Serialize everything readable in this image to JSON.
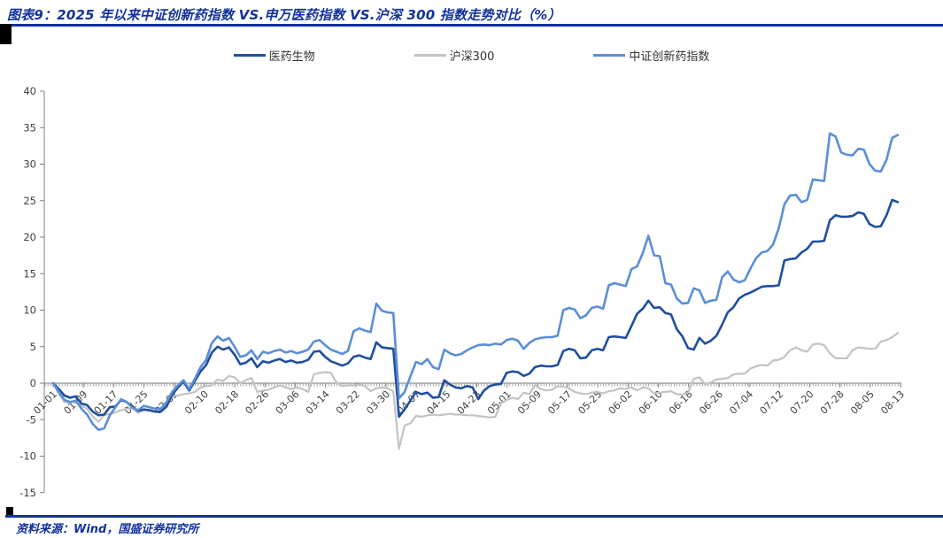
{
  "header": {
    "title": "图表9：2025 年以来中证创新药指数 VS.申万医药指数 VS.沪深 300 指数走势对比（%）"
  },
  "footer": {
    "source": "资料来源：Wind，国盛证券研究所"
  },
  "accent": {
    "rule_blue": "#12319e",
    "tab_black": "#000000",
    "axis_line": "#808080",
    "tick_text": "#404040"
  },
  "chart_data": {
    "type": "line",
    "title": "",
    "xlabel": "",
    "ylabel": "",
    "ylim": [
      -15,
      40
    ],
    "y_ticks": [
      -15,
      -10,
      -5,
      0,
      5,
      10,
      15,
      20,
      25,
      30,
      35,
      40
    ],
    "grid": false,
    "legend_position": "top-center",
    "x_tick_labels": [
      "01-01",
      "01-09",
      "01-17",
      "01-25",
      "02-02",
      "02-10",
      "02-18",
      "02-26",
      "03-06",
      "03-14",
      "03-22",
      "03-30",
      "04-07",
      "04-15",
      "04-23",
      "05-01",
      "05-09",
      "05-17",
      "05-25",
      "06-02",
      "06-10",
      "06-18",
      "06-26",
      "07-04",
      "07-12",
      "07-20",
      "07-28",
      "08-05",
      "08-13"
    ],
    "x": [
      "01-01",
      "01-02",
      "01-03",
      "01-06",
      "01-07",
      "01-08",
      "01-09",
      "01-10",
      "01-13",
      "01-14",
      "01-15",
      "01-16",
      "01-17",
      "01-20",
      "01-21",
      "01-22",
      "01-23",
      "01-24",
      "01-27",
      "02-05",
      "02-06",
      "02-07",
      "02-10",
      "02-11",
      "02-12",
      "02-13",
      "02-14",
      "02-17",
      "02-18",
      "02-19",
      "02-20",
      "02-21",
      "02-24",
      "02-25",
      "02-26",
      "02-27",
      "02-28",
      "03-03",
      "03-04",
      "03-05",
      "03-06",
      "03-07",
      "03-10",
      "03-11",
      "03-12",
      "03-13",
      "03-14",
      "03-17",
      "03-18",
      "03-19",
      "03-20",
      "03-21",
      "03-24",
      "03-25",
      "03-26",
      "03-27",
      "03-28",
      "03-31",
      "04-01",
      "04-02",
      "04-03",
      "04-07",
      "04-08",
      "04-09",
      "04-10",
      "04-11",
      "04-14",
      "04-15",
      "04-16",
      "04-17",
      "04-18",
      "04-21",
      "04-22",
      "04-23",
      "04-24",
      "04-25",
      "04-28",
      "04-29",
      "04-30",
      "05-06",
      "05-07",
      "05-08",
      "05-09",
      "05-12",
      "05-13",
      "05-14",
      "05-15",
      "05-16",
      "05-19",
      "05-20",
      "05-21",
      "05-22",
      "05-23",
      "05-26",
      "05-27",
      "05-28",
      "05-29",
      "05-30",
      "06-03",
      "06-04",
      "06-05",
      "06-06",
      "06-09",
      "06-10",
      "06-11",
      "06-12",
      "06-13",
      "06-16",
      "06-17",
      "06-18",
      "06-19",
      "06-20",
      "06-23",
      "06-24",
      "06-25",
      "06-26",
      "06-27",
      "06-30",
      "07-01",
      "07-02",
      "07-03",
      "07-04",
      "07-07",
      "07-08",
      "07-09",
      "07-10",
      "07-11",
      "07-14",
      "07-15",
      "07-16",
      "07-17",
      "07-18",
      "07-21",
      "07-22",
      "07-23",
      "07-24",
      "07-25",
      "07-28",
      "07-29",
      "07-30",
      "07-31",
      "08-01",
      "08-04",
      "08-05",
      "08-06",
      "08-07",
      "08-08",
      "08-11",
      "08-12",
      "08-13"
    ],
    "series": [
      {
        "name": "医药生物",
        "color": "#1f4e9e",
        "width": 2.6,
        "z": 2,
        "values": [
          0,
          -0.8,
          -1.7,
          -2.0,
          -1.8,
          -2.8,
          -3.0,
          -3.9,
          -4.4,
          -4.3,
          -3.3,
          -3.2,
          -2.3,
          -2.6,
          -3.3,
          -3.8,
          -3.6,
          -3.7,
          -3.9,
          -3.9,
          -3.2,
          -1.6,
          -0.6,
          0.2,
          -1.0,
          0.3,
          1.6,
          2.5,
          4.2,
          5.0,
          4.6,
          4.9,
          3.9,
          2.6,
          2.8,
          3.4,
          2.2,
          3.0,
          2.8,
          3.1,
          3.3,
          2.9,
          3.1,
          2.8,
          2.9,
          3.2,
          4.3,
          4.4,
          3.6,
          3.0,
          2.7,
          2.4,
          2.7,
          3.6,
          3.8,
          3.5,
          3.3,
          5.6,
          4.9,
          4.8,
          4.7,
          -4.6,
          -3.6,
          -2.4,
          -1.2,
          -1.5,
          -1.3,
          -2.0,
          -1.9,
          0.4,
          -0.2,
          -0.6,
          -0.7,
          -0.4,
          -0.6,
          -2.2,
          -1.0,
          -0.4,
          -0.2,
          -0.1,
          1.4,
          1.6,
          1.5,
          1.0,
          1.3,
          2.2,
          2.4,
          2.3,
          2.3,
          2.5,
          4.4,
          4.7,
          4.5,
          3.4,
          3.5,
          4.5,
          4.7,
          4.5,
          6.3,
          6.4,
          6.3,
          6.2,
          7.8,
          9.5,
          10.2,
          11.3,
          10.3,
          10.4,
          9.6,
          9.4,
          7.4,
          6.4,
          4.8,
          4.6,
          6.2,
          5.4,
          5.8,
          6.5,
          8.0,
          9.7,
          10.4,
          11.6,
          12.1,
          12.4,
          12.8,
          13.2,
          13.3,
          13.3,
          13.4,
          16.8,
          17.0,
          17.1,
          17.9,
          18.4,
          19.4,
          19.4,
          19.5,
          22.3,
          23.0,
          22.8,
          22.8,
          22.9,
          23.4,
          23.2,
          21.8,
          21.4,
          21.5,
          23.0,
          25.1,
          24.8
        ]
      },
      {
        "name": "沪深300",
        "color": "#c3c3c3",
        "width": 2.2,
        "z": 1,
        "values": [
          0,
          -1.5,
          -2.6,
          -2.7,
          -2.5,
          -3.1,
          -3.5,
          -4.6,
          -5.3,
          -4.4,
          -4.2,
          -4.0,
          -3.7,
          -3.5,
          -3.4,
          -4.1,
          -3.7,
          -3.8,
          -3.9,
          -3.8,
          -2.9,
          -1.8,
          -1.7,
          -1.5,
          -1.4,
          -1.2,
          -0.6,
          -0.4,
          -0.3,
          0.5,
          0.3,
          1.0,
          0.8,
          0.0,
          0.4,
          0.7,
          -1.2,
          -1.0,
          -0.9,
          -0.6,
          -0.3,
          -0.6,
          -0.8,
          -0.6,
          -0.8,
          -1.2,
          1.2,
          1.4,
          1.5,
          1.4,
          0.1,
          -0.4,
          -0.3,
          -0.3,
          -0.2,
          -0.4,
          -1.1,
          -0.7,
          -0.6,
          -0.7,
          -1.1,
          -9.0,
          -5.8,
          -5.5,
          -4.5,
          -4.6,
          -4.4,
          -4.3,
          -4.4,
          -4.3,
          -4.2,
          -4.3,
          -4.3,
          -4.4,
          -4.4,
          -4.5,
          -4.6,
          -4.7,
          -4.6,
          -2.8,
          -2.3,
          -2.0,
          -2.2,
          -1.3,
          -1.5,
          -0.3,
          -0.8,
          -1.0,
          -0.9,
          -0.4,
          -0.5,
          -0.7,
          -1.2,
          -1.4,
          -1.5,
          -1.3,
          -1.2,
          -1.4,
          -1.1,
          -1.0,
          -0.7,
          -0.8,
          -0.6,
          -1.0,
          -0.6,
          -0.7,
          -1.4,
          -1.3,
          -1.2,
          -1.1,
          -1.5,
          -1.6,
          -1.3,
          0.6,
          0.8,
          -0.2,
          0.1,
          0.5,
          0.6,
          0.7,
          1.2,
          1.3,
          1.3,
          2.0,
          2.3,
          2.5,
          2.4,
          3.1,
          3.2,
          3.6,
          4.5,
          4.9,
          4.5,
          4.3,
          5.3,
          5.4,
          5.2,
          4.1,
          3.4,
          3.4,
          3.4,
          4.5,
          4.9,
          4.8,
          4.7,
          4.7,
          5.7,
          5.9,
          6.3,
          6.9
        ]
      },
      {
        "name": "中证创新药指数",
        "color": "#5b8ed6",
        "width": 2.6,
        "z": 3,
        "values": [
          0,
          -1.2,
          -2.3,
          -2.6,
          -2.4,
          -3.5,
          -4.3,
          -5.6,
          -6.4,
          -6.2,
          -4.4,
          -3.3,
          -2.2,
          -2.6,
          -3.4,
          -3.7,
          -3.1,
          -3.3,
          -3.5,
          -3.5,
          -2.6,
          -1.2,
          -0.3,
          0.4,
          -0.8,
          0.6,
          2.2,
          3.2,
          5.5,
          6.4,
          5.8,
          6.2,
          5.0,
          3.6,
          3.8,
          4.5,
          3.3,
          4.3,
          4.1,
          4.4,
          4.6,
          4.2,
          4.4,
          4.1,
          4.3,
          4.6,
          5.7,
          5.9,
          5.2,
          4.6,
          4.3,
          4.0,
          4.4,
          7.1,
          7.5,
          7.2,
          7.0,
          10.9,
          9.9,
          9.7,
          9.6,
          -2.1,
          -1.2,
          0.9,
          2.9,
          2.6,
          3.3,
          2.2,
          1.9,
          4.6,
          4.1,
          3.8,
          4.0,
          4.5,
          4.9,
          5.2,
          5.3,
          5.2,
          5.4,
          5.3,
          5.9,
          6.1,
          5.8,
          4.7,
          5.5,
          6.0,
          6.2,
          6.3,
          6.3,
          6.5,
          10.0,
          10.3,
          10.1,
          8.9,
          9.3,
          10.3,
          10.5,
          10.2,
          13.4,
          13.7,
          13.5,
          13.3,
          15.6,
          16.0,
          17.8,
          20.2,
          17.5,
          17.4,
          13.7,
          13.5,
          11.6,
          10.9,
          11.0,
          13.0,
          12.7,
          11.0,
          11.3,
          11.4,
          14.5,
          15.3,
          14.2,
          13.8,
          14.1,
          15.7,
          17.1,
          17.9,
          18.1,
          19.0,
          21.2,
          24.5,
          25.7,
          25.8,
          24.8,
          25.1,
          27.9,
          27.8,
          27.7,
          34.2,
          33.8,
          31.6,
          31.3,
          31.2,
          32.1,
          32.0,
          30.0,
          29.1,
          29.0,
          30.6,
          33.6,
          34.0
        ]
      }
    ]
  }
}
